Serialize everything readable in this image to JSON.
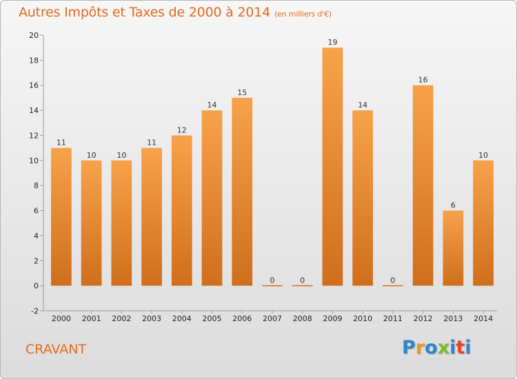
{
  "title": "Autres Impôts et Taxes de 2000 à 2014",
  "unit": "(en milliers d'€)",
  "town": "CRAVANT",
  "logo": {
    "letters": [
      "P",
      "r",
      "o",
      "x",
      "i",
      "t",
      "i"
    ],
    "colors": [
      "#2e86d0",
      "#f09a1a",
      "#2e86d0",
      "#7cbd2a",
      "#2e86d0",
      "#e8432a",
      "#2e86d0"
    ]
  },
  "colors": {
    "bar_light": "#f7a24a",
    "bar_dark": "#d06e1c",
    "accent": "#e36a1e"
  },
  "chart_data": {
    "type": "bar",
    "categories": [
      "2000",
      "2001",
      "2002",
      "2003",
      "2004",
      "2005",
      "2006",
      "2007",
      "2008",
      "2009",
      "2010",
      "2011",
      "2012",
      "2013",
      "2014"
    ],
    "values": [
      11,
      10,
      10,
      11,
      12,
      14,
      15,
      0,
      0,
      19,
      14,
      0,
      16,
      6,
      10
    ],
    "data_labels": [
      "11",
      "10",
      "10",
      "11",
      "12",
      "14",
      "15",
      "0",
      "0",
      "19",
      "14",
      "0",
      "16",
      "6",
      "10"
    ],
    "yticks": [
      "-2",
      "0",
      "2",
      "4",
      "6",
      "8",
      "10",
      "12",
      "14",
      "16",
      "18",
      "20"
    ],
    "ylim": [
      -2,
      20
    ],
    "grid": false,
    "legend": "none"
  }
}
